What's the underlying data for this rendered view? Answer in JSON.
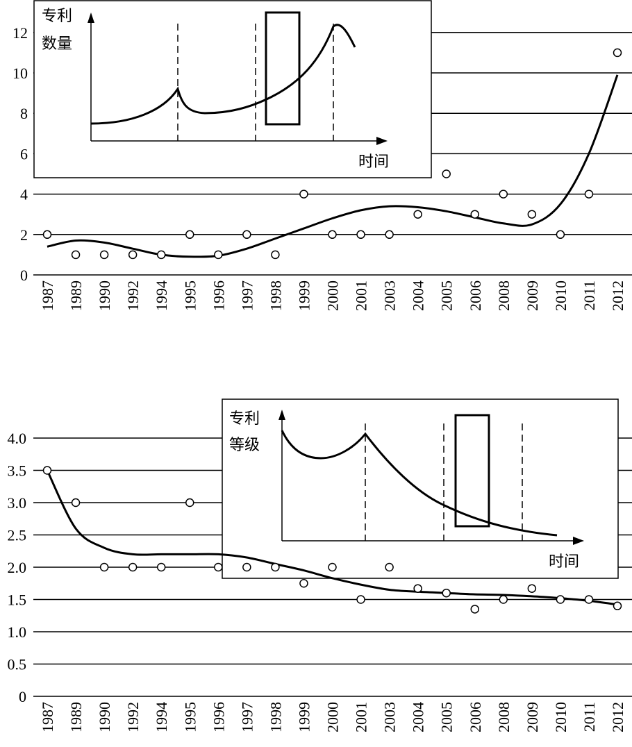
{
  "chart_data": [
    {
      "type": "scatter",
      "title": "",
      "ylim": [
        0,
        13
      ],
      "y_ticks": [
        0,
        2,
        4,
        6,
        8,
        10,
        12
      ],
      "categories": [
        "1987",
        "1989",
        "1990",
        "1992",
        "1994",
        "1995",
        "1996",
        "1997",
        "1998",
        "1999",
        "2000",
        "2001",
        "2003",
        "2004",
        "2005",
        "2006",
        "2008",
        "2009",
        "2010",
        "2011",
        "2012"
      ],
      "values": [
        2,
        1,
        1,
        1,
        1,
        2,
        1,
        2,
        1,
        4,
        2,
        2,
        2,
        3,
        5,
        3,
        4,
        3,
        2,
        4,
        11
      ],
      "trend": [
        1.4,
        1.7,
        1.6,
        1.3,
        1.0,
        0.9,
        0.95,
        1.3,
        1.8,
        2.3,
        2.8,
        3.2,
        3.4,
        3.35,
        3.15,
        2.85,
        2.55,
        2.5,
        3.5,
        6.0,
        9.9
      ],
      "inset": {
        "ylabel_line1": "专利",
        "ylabel_line2": "数量",
        "xlabel": "时间"
      }
    },
    {
      "type": "scatter",
      "title": "",
      "ylim": [
        0,
        4.2
      ],
      "y_ticks": [
        "0",
        "0.5",
        "1.0",
        "1.5",
        "2.0",
        "2.5",
        "3.0",
        "3.5",
        "4.0"
      ],
      "categories": [
        "1987",
        "1989",
        "1990",
        "1992",
        "1994",
        "1995",
        "1996",
        "1997",
        "1998",
        "1999",
        "2000",
        "2001",
        "2003",
        "2004",
        "2005",
        "2006",
        "2008",
        "2009",
        "2010",
        "2011",
        "2012"
      ],
      "values": [
        3.5,
        3.0,
        2.0,
        2.0,
        2.0,
        3.0,
        2.0,
        2.0,
        2.0,
        1.75,
        2.0,
        1.5,
        2.0,
        1.67,
        1.6,
        1.35,
        1.5,
        1.67,
        1.5,
        1.5,
        1.4
      ],
      "trend": [
        3.5,
        2.6,
        2.3,
        2.2,
        2.2,
        2.2,
        2.2,
        2.15,
        2.05,
        1.95,
        1.83,
        1.73,
        1.65,
        1.62,
        1.6,
        1.58,
        1.57,
        1.55,
        1.52,
        1.48,
        1.42
      ],
      "inset": {
        "ylabel_line1": "专利",
        "ylabel_line2": "等级",
        "xlabel": "时间"
      }
    }
  ]
}
